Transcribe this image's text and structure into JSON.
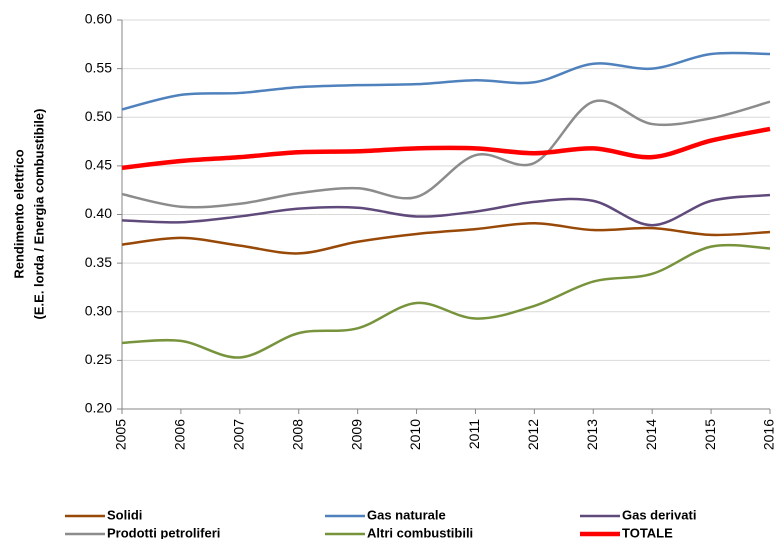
{
  "chart_data": {
    "type": "line",
    "y_label": [
      "Rendimento elettrico",
      "(E.E. lorda / Energia combustibile)"
    ],
    "x": [
      2005,
      2006,
      2007,
      2008,
      2009,
      2010,
      2011,
      2012,
      2013,
      2014,
      2015,
      2016
    ],
    "xlim": [
      2005,
      2016
    ],
    "xticks": [
      2005,
      2006,
      2007,
      2008,
      2009,
      2010,
      2011,
      2012,
      2013,
      2014,
      2015,
      2016
    ],
    "ylim": [
      0.2,
      0.6
    ],
    "yticks": [
      {
        "value": 0.2,
        "label": "0.20"
      },
      {
        "value": 0.25,
        "label": "0.25"
      },
      {
        "value": 0.3,
        "label": "0.30"
      },
      {
        "value": 0.35,
        "label": "0.35"
      },
      {
        "value": 0.4,
        "label": "0.40"
      },
      {
        "value": 0.45,
        "label": "0.45"
      },
      {
        "value": 0.5,
        "label": "0.50"
      },
      {
        "value": 0.55,
        "label": "0.55"
      },
      {
        "value": 0.6,
        "label": "0.60"
      }
    ],
    "grid": true,
    "smooth": true,
    "legend": "bottom",
    "series": [
      {
        "name": "Solidi",
        "color": "#984807",
        "width": 2.5,
        "values": [
          0.369,
          0.376,
          0.368,
          0.36,
          0.372,
          0.38,
          0.385,
          0.391,
          0.384,
          0.386,
          0.379,
          0.382
        ]
      },
      {
        "name": "Gas naturale",
        "color": "#4F81BD",
        "width": 2.5,
        "values": [
          0.508,
          0.523,
          0.525,
          0.531,
          0.533,
          0.534,
          0.538,
          0.536,
          0.555,
          0.55,
          0.565,
          0.565
        ]
      },
      {
        "name": "Gas derivati",
        "color": "#604A7B",
        "width": 2.5,
        "values": [
          0.394,
          0.392,
          0.398,
          0.406,
          0.407,
          0.398,
          0.403,
          0.413,
          0.414,
          0.389,
          0.414,
          0.42
        ]
      },
      {
        "name": "Prodotti petroliferi",
        "color": "#8C8C8C",
        "width": 2.5,
        "values": [
          0.421,
          0.408,
          0.411,
          0.422,
          0.427,
          0.418,
          0.461,
          0.453,
          0.516,
          0.493,
          0.499,
          0.516
        ]
      },
      {
        "name": "Altri combustibili",
        "color": "#77933C",
        "width": 2.5,
        "values": [
          0.268,
          0.27,
          0.253,
          0.278,
          0.283,
          0.309,
          0.293,
          0.306,
          0.331,
          0.339,
          0.367,
          0.365
        ]
      },
      {
        "name": "TOTALE",
        "color": "#FF0000",
        "width": 4.5,
        "values": [
          0.448,
          0.455,
          0.459,
          0.464,
          0.465,
          0.468,
          0.468,
          0.463,
          0.468,
          0.459,
          0.476,
          0.488
        ]
      }
    ]
  }
}
